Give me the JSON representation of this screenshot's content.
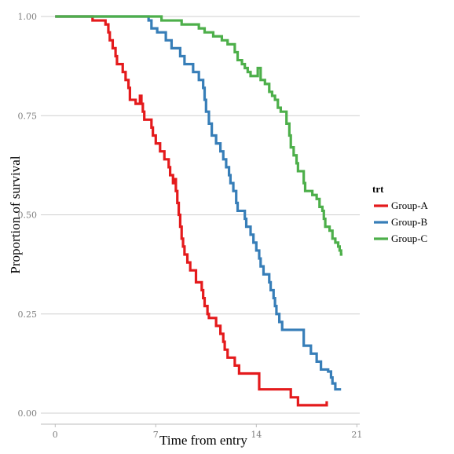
{
  "chart_data": {
    "type": "line",
    "step": true,
    "xlabel": "Time from entry",
    "ylabel": "Proportion of survival",
    "xlim": [
      -1,
      21.2
    ],
    "ylim": [
      0,
      1
    ],
    "x_ticks": [
      0,
      7,
      14,
      21
    ],
    "x_tick_labels": [
      "0",
      "7",
      "14",
      "21"
    ],
    "y_ticks": [
      0,
      0.25,
      0.5,
      0.75,
      1
    ],
    "y_tick_labels": [
      "0.00",
      "0.25",
      "0.50",
      "0.75",
      "1.00"
    ],
    "grid": "horizontal",
    "legend": {
      "title": "trt",
      "position": "right"
    },
    "series": [
      {
        "name": "Group-A",
        "color": "#e41a1c",
        "points": [
          [
            0,
            1.0
          ],
          [
            2.6,
            0.99
          ],
          [
            3.5,
            0.98
          ],
          [
            3.7,
            0.96
          ],
          [
            3.8,
            0.94
          ],
          [
            4.0,
            0.92
          ],
          [
            4.2,
            0.9
          ],
          [
            4.3,
            0.88
          ],
          [
            4.7,
            0.86
          ],
          [
            4.9,
            0.84
          ],
          [
            5.1,
            0.82
          ],
          [
            5.2,
            0.79
          ],
          [
            5.6,
            0.78
          ],
          [
            5.9,
            0.8
          ],
          [
            6.0,
            0.78
          ],
          [
            6.1,
            0.76
          ],
          [
            6.2,
            0.74
          ],
          [
            6.7,
            0.72
          ],
          [
            6.8,
            0.7
          ],
          [
            7.0,
            0.68
          ],
          [
            7.3,
            0.66
          ],
          [
            7.6,
            0.64
          ],
          [
            7.9,
            0.62
          ],
          [
            8.0,
            0.6
          ],
          [
            8.2,
            0.58
          ],
          [
            8.3,
            0.59
          ],
          [
            8.4,
            0.56
          ],
          [
            8.5,
            0.53
          ],
          [
            8.6,
            0.5
          ],
          [
            8.7,
            0.47
          ],
          [
            8.8,
            0.44
          ],
          [
            8.9,
            0.42
          ],
          [
            9.0,
            0.4
          ],
          [
            9.2,
            0.38
          ],
          [
            9.4,
            0.36
          ],
          [
            9.8,
            0.33
          ],
          [
            10.2,
            0.31
          ],
          [
            10.3,
            0.29
          ],
          [
            10.4,
            0.27
          ],
          [
            10.6,
            0.25
          ],
          [
            10.7,
            0.24
          ],
          [
            11.2,
            0.22
          ],
          [
            11.5,
            0.2
          ],
          [
            11.7,
            0.18
          ],
          [
            11.8,
            0.16
          ],
          [
            12.0,
            0.14
          ],
          [
            12.5,
            0.12
          ],
          [
            12.8,
            0.1
          ],
          [
            14.2,
            0.06
          ],
          [
            16.4,
            0.04
          ],
          [
            16.9,
            0.02
          ],
          [
            18.9,
            0.02
          ],
          [
            18.9,
            0.03
          ]
        ]
      },
      {
        "name": "Group-B",
        "color": "#377eb8",
        "points": [
          [
            0,
            1.0
          ],
          [
            6.4,
            1.0
          ],
          [
            6.5,
            0.99
          ],
          [
            6.7,
            0.97
          ],
          [
            7.1,
            0.96
          ],
          [
            7.7,
            0.94
          ],
          [
            8.1,
            0.92
          ],
          [
            8.7,
            0.9
          ],
          [
            9.0,
            0.88
          ],
          [
            9.6,
            0.86
          ],
          [
            10.0,
            0.84
          ],
          [
            10.3,
            0.82
          ],
          [
            10.4,
            0.79
          ],
          [
            10.5,
            0.76
          ],
          [
            10.7,
            0.73
          ],
          [
            10.9,
            0.7
          ],
          [
            11.2,
            0.68
          ],
          [
            11.5,
            0.66
          ],
          [
            11.7,
            0.64
          ],
          [
            11.9,
            0.62
          ],
          [
            12.1,
            0.6
          ],
          [
            12.2,
            0.58
          ],
          [
            12.4,
            0.56
          ],
          [
            12.6,
            0.53
          ],
          [
            12.7,
            0.51
          ],
          [
            13.2,
            0.49
          ],
          [
            13.3,
            0.47
          ],
          [
            13.6,
            0.45
          ],
          [
            13.8,
            0.43
          ],
          [
            14.0,
            0.41
          ],
          [
            14.2,
            0.39
          ],
          [
            14.3,
            0.37
          ],
          [
            14.5,
            0.35
          ],
          [
            14.9,
            0.33
          ],
          [
            15.0,
            0.31
          ],
          [
            15.2,
            0.29
          ],
          [
            15.3,
            0.27
          ],
          [
            15.4,
            0.25
          ],
          [
            15.6,
            0.23
          ],
          [
            15.8,
            0.21
          ],
          [
            17.3,
            0.17
          ],
          [
            17.8,
            0.15
          ],
          [
            18.2,
            0.13
          ],
          [
            18.5,
            0.11
          ],
          [
            19.0,
            0.105
          ],
          [
            19.2,
            0.09
          ],
          [
            19.3,
            0.075
          ],
          [
            19.5,
            0.06
          ],
          [
            19.9,
            0.06
          ]
        ]
      },
      {
        "name": "Group-C",
        "color": "#4daf4a",
        "points": [
          [
            0,
            1.0
          ],
          [
            7.3,
            1.0
          ],
          [
            7.4,
            0.99
          ],
          [
            8.8,
            0.98
          ],
          [
            10.0,
            0.97
          ],
          [
            10.4,
            0.96
          ],
          [
            11.0,
            0.95
          ],
          [
            11.6,
            0.94
          ],
          [
            12.0,
            0.93
          ],
          [
            12.5,
            0.91
          ],
          [
            12.7,
            0.89
          ],
          [
            13.0,
            0.88
          ],
          [
            13.2,
            0.87
          ],
          [
            13.4,
            0.86
          ],
          [
            13.6,
            0.85
          ],
          [
            14.0,
            0.85
          ],
          [
            14.1,
            0.87
          ],
          [
            14.3,
            0.84
          ],
          [
            14.6,
            0.83
          ],
          [
            14.9,
            0.81
          ],
          [
            15.1,
            0.8
          ],
          [
            15.3,
            0.79
          ],
          [
            15.5,
            0.77
          ],
          [
            15.7,
            0.76
          ],
          [
            16.1,
            0.73
          ],
          [
            16.3,
            0.7
          ],
          [
            16.4,
            0.67
          ],
          [
            16.6,
            0.65
          ],
          [
            16.8,
            0.63
          ],
          [
            16.9,
            0.61
          ],
          [
            17.3,
            0.58
          ],
          [
            17.4,
            0.56
          ],
          [
            17.9,
            0.55
          ],
          [
            18.2,
            0.54
          ],
          [
            18.4,
            0.52
          ],
          [
            18.6,
            0.51
          ],
          [
            18.7,
            0.49
          ],
          [
            18.8,
            0.47
          ],
          [
            19.1,
            0.46
          ],
          [
            19.3,
            0.44
          ],
          [
            19.5,
            0.43
          ],
          [
            19.7,
            0.42
          ],
          [
            19.8,
            0.41
          ],
          [
            19.9,
            0.4
          ],
          [
            20.0,
            0.4
          ]
        ]
      }
    ]
  }
}
